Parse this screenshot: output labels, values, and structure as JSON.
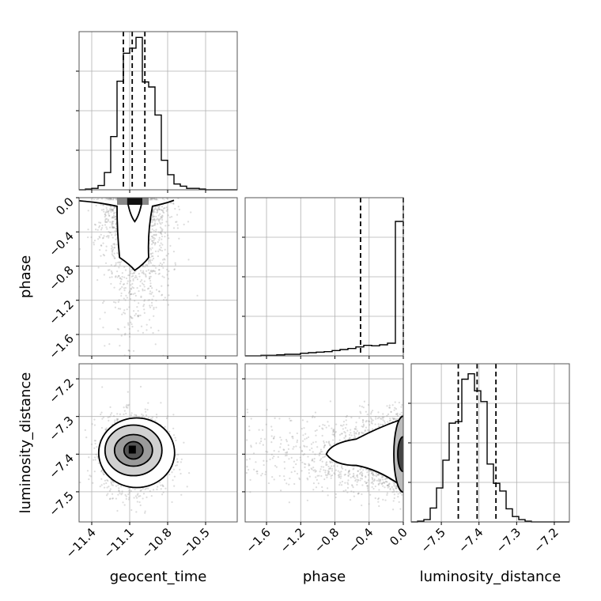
{
  "chart_data": {
    "type": "corner",
    "parameters": [
      "geocent_time",
      "phase",
      "luminosity_distance"
    ],
    "axis_labels": {
      "geocent_time": "geocent_time",
      "phase": "phase",
      "luminosity_distance": "luminosity_distance"
    },
    "ranges": {
      "geocent_time": [
        -11.5,
        -10.25
      ],
      "phase": [
        -1.85,
        0.0
      ],
      "luminosity_distance": [
        -7.58,
        -7.16
      ]
    },
    "ticks": {
      "geocent_time": [
        {
          "value": -11.4,
          "label": "−11.4"
        },
        {
          "value": -11.1,
          "label": "−11.1"
        },
        {
          "value": -10.8,
          "label": "−10.8"
        },
        {
          "value": -10.5,
          "label": "−10.5"
        }
      ],
      "phase": [
        {
          "value": -1.6,
          "label": "−1.6"
        },
        {
          "value": -1.2,
          "label": "−1.2"
        },
        {
          "value": -0.8,
          "label": "−0.8"
        },
        {
          "value": -0.4,
          "label": "−0.4"
        },
        {
          "value": 0.0,
          "label": "0.0"
        }
      ],
      "luminosity_distance": [
        {
          "value": -7.5,
          "label": "−7.5"
        },
        {
          "value": -7.4,
          "label": "−7.4"
        },
        {
          "value": -7.3,
          "label": "−7.3"
        },
        {
          "value": -7.2,
          "label": "−7.2"
        }
      ]
    },
    "grid": true,
    "histograms": {
      "geocent_time": {
        "bin_edges": [
          -11.5,
          -11.45,
          -11.4,
          -11.35,
          -11.3,
          -11.25,
          -11.2,
          -11.15,
          -11.1,
          -11.05,
          -11.0,
          -10.95,
          -10.9,
          -10.85,
          -10.8,
          -10.75,
          -10.7,
          -10.65,
          -10.6,
          -10.55,
          -10.5,
          -10.45,
          -10.4,
          -10.35,
          -10.3,
          -10.25
        ],
        "counts": [
          0,
          1,
          2,
          6,
          24,
          74,
          151,
          190,
          197,
          212,
          150,
          143,
          104,
          41,
          21,
          8,
          5,
          2,
          2,
          1,
          0,
          0,
          0,
          0,
          0
        ],
        "ymax": 220,
        "quantiles": [
          -11.15,
          -11.08,
          -10.98
        ]
      },
      "phase": {
        "bin_edges": [
          -1.85,
          -1.7575,
          -1.665,
          -1.5725,
          -1.48,
          -1.3875,
          -1.295,
          -1.2025,
          -1.11,
          -1.0175,
          -0.925,
          -0.8325,
          -0.74,
          -0.6475,
          -0.555,
          -0.4625,
          -0.37,
          -0.2775,
          -0.185,
          -0.0925,
          0.0
        ],
        "counts": [
          0,
          0,
          1,
          1,
          2,
          3,
          3,
          5,
          6,
          7,
          8,
          10,
          12,
          14,
          17,
          20,
          19,
          21,
          24,
          255
        ],
        "ymax": 300,
        "quantiles": [
          -0.5,
          0.0
        ]
      },
      "luminosity_distance": {
        "bin_edges": [
          -7.58,
          -7.5632,
          -7.5464,
          -7.5296,
          -7.5128,
          -7.496,
          -7.4792,
          -7.4624,
          -7.4456,
          -7.4288,
          -7.412,
          -7.3952,
          -7.3784,
          -7.3616,
          -7.3448,
          -7.328,
          -7.3112,
          -7.2944,
          -7.2776,
          -7.2608,
          -7.244,
          -7.2272,
          -7.2104,
          -7.1936,
          -7.1768,
          -7.16
        ],
        "counts": [
          0,
          1,
          3,
          18,
          44,
          80,
          128,
          130,
          185,
          192,
          170,
          156,
          75,
          50,
          40,
          17,
          7,
          3,
          1,
          0,
          0,
          0,
          0,
          0,
          0
        ],
        "ymax": 205,
        "quantiles": [
          -7.455,
          -7.405,
          -7.355
        ]
      }
    },
    "scatter_2d": [
      {
        "x": "geocent_time",
        "y": "phase",
        "x_center": -11.06,
        "x_sigma": 0.13,
        "y_scale": 0.42
      },
      {
        "x": "geocent_time",
        "y": "luminosity_distance",
        "x_center": -11.06,
        "x_sigma": 0.13,
        "y_center": -7.4,
        "y_sigma": 0.05
      },
      {
        "x": "phase",
        "y": "luminosity_distance",
        "x_scale": 0.45,
        "y_center": -7.4,
        "y_sigma": 0.05
      }
    ],
    "colors": {
      "hist": "#000000",
      "scatter": "#9a9a9a",
      "contour": "#000000",
      "grid": "#b0b0b0"
    }
  }
}
